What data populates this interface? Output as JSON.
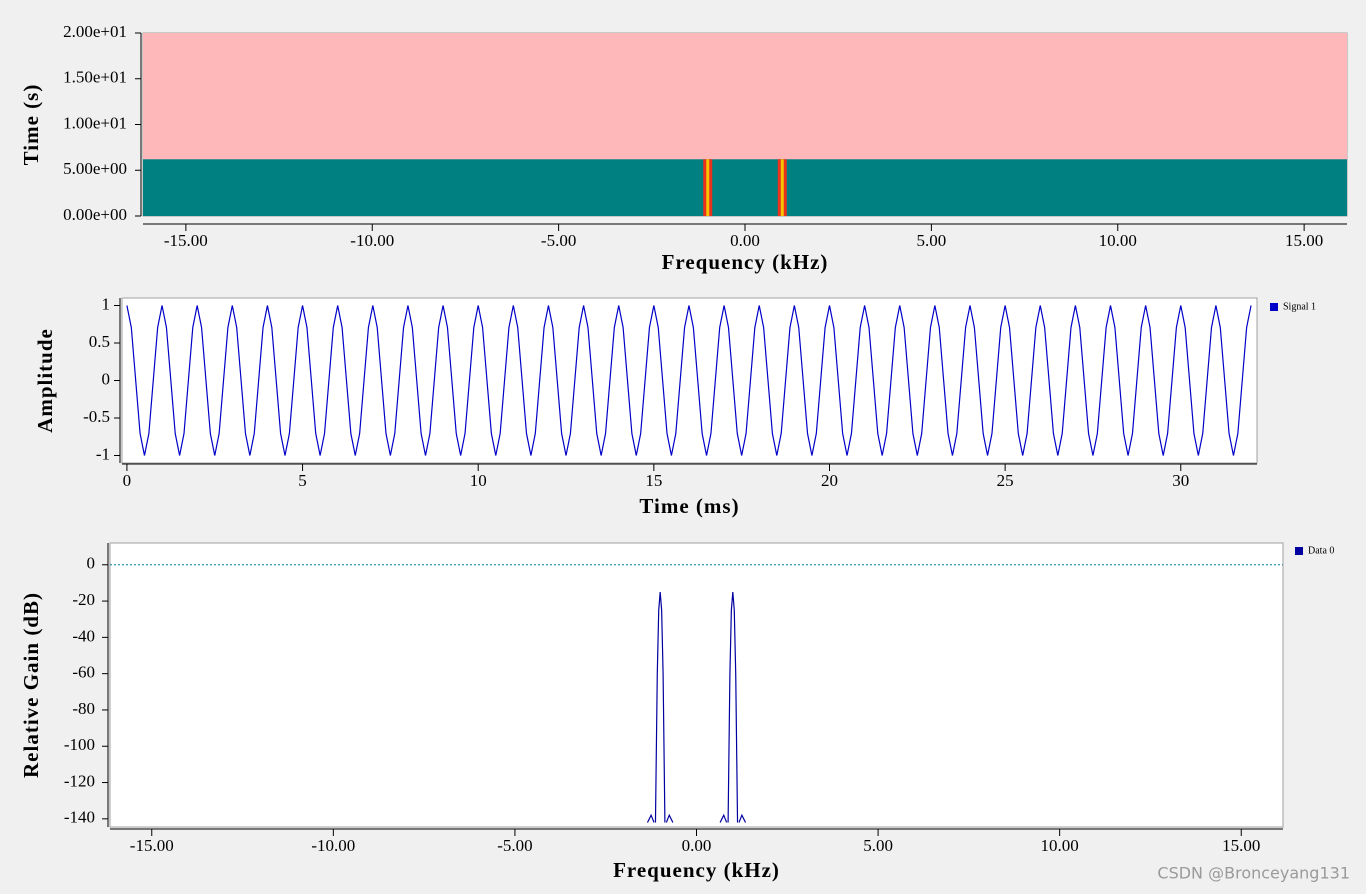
{
  "chart_data": [
    {
      "type": "waterfall",
      "xlabel": "Frequency (kHz)",
      "ylabel": "Time (s)",
      "xlim": [
        -16.15,
        16.15
      ],
      "ylim": [
        0,
        20
      ],
      "xticks": [
        {
          "value": -15,
          "label": "-15.00"
        },
        {
          "value": -10,
          "label": "-10.00"
        },
        {
          "value": -5,
          "label": "-5.00"
        },
        {
          "value": 0,
          "label": "0.00"
        },
        {
          "value": 5,
          "label": "5.00"
        },
        {
          "value": 10,
          "label": "10.00"
        },
        {
          "value": 15,
          "label": "15.00"
        }
      ],
      "yticks": [
        {
          "value": 0,
          "label": "0.00e+00"
        },
        {
          "value": 5,
          "label": "5.00e+00"
        },
        {
          "value": 10,
          "label": "1.00e+01"
        },
        {
          "value": 15,
          "label": "1.50e+01"
        },
        {
          "value": 20,
          "label": "2.00e+01"
        }
      ],
      "peaks": [
        -1,
        1
      ],
      "time_filled": 6.2,
      "colors": {
        "background": "#008080",
        "empty": "#ffb8ba",
        "peak": "#e8321e",
        "peak_center": "#f5c400"
      }
    },
    {
      "type": "line",
      "xlabel": "Time (ms)",
      "ylabel": "Amplitude",
      "xlim": [
        -0.14,
        32.17
      ],
      "ylim": [
        -1.1,
        1.1
      ],
      "xticks": [
        0,
        5,
        10,
        15,
        20,
        25,
        30
      ],
      "yticks": [
        1,
        0.5,
        0,
        -0.5,
        -1
      ],
      "x": [
        0,
        0.125,
        0.25,
        0.375,
        0.5,
        0.625,
        0.75,
        0.875,
        1,
        1.125,
        1.25,
        1.375,
        1.5,
        1.625,
        1.75,
        1.875,
        2,
        2.125,
        2.25,
        2.375,
        2.5,
        2.625,
        2.75,
        2.875,
        3,
        3.125,
        3.25,
        3.375,
        3.5,
        3.625,
        3.75,
        3.875,
        4,
        4.125,
        4.25,
        4.375,
        4.5,
        4.625,
        4.75,
        4.875,
        5,
        5.125,
        5.25,
        5.375,
        5.5,
        5.625,
        5.75,
        5.875,
        6,
        6.125,
        6.25,
        6.375,
        6.5,
        6.625,
        6.75,
        6.875,
        7,
        7.125,
        7.25,
        7.375,
        7.5,
        7.625,
        7.75,
        7.875,
        8,
        8.125,
        8.25,
        8.375,
        8.5,
        8.625,
        8.75,
        8.875,
        9,
        9.125,
        9.25,
        9.375,
        9.5,
        9.625,
        9.75,
        9.875,
        10,
        10.125,
        10.25,
        10.375,
        10.5,
        10.625,
        10.75,
        10.875,
        11,
        11.125,
        11.25,
        11.375,
        11.5,
        11.625,
        11.75,
        11.875,
        12,
        12.125,
        12.25,
        12.375,
        12.5,
        12.625,
        12.75,
        12.875,
        13,
        13.125,
        13.25,
        13.375,
        13.5,
        13.625,
        13.75,
        13.875,
        14,
        14.125,
        14.25,
        14.375,
        14.5,
        14.625,
        14.75,
        14.875,
        15,
        15.125,
        15.25,
        15.375,
        15.5,
        15.625,
        15.75,
        15.875,
        16,
        16.125,
        16.25,
        16.375,
        16.5,
        16.625,
        16.75,
        16.875,
        17,
        17.125,
        17.25,
        17.375,
        17.5,
        17.625,
        17.75,
        17.875,
        18,
        18.125,
        18.25,
        18.375,
        18.5,
        18.625,
        18.75,
        18.875,
        19,
        19.125,
        19.25,
        19.375,
        19.5,
        19.625,
        19.75,
        19.875,
        20,
        20.125,
        20.25,
        20.375,
        20.5,
        20.625,
        20.75,
        20.875,
        21,
        21.125,
        21.25,
        21.375,
        21.5,
        21.625,
        21.75,
        21.875,
        22,
        22.125,
        22.25,
        22.375,
        22.5,
        22.625,
        22.75,
        22.875,
        23,
        23.125,
        23.25,
        23.375,
        23.5,
        23.625,
        23.75,
        23.875,
        24,
        24.125,
        24.25,
        24.375,
        24.5,
        24.625,
        24.75,
        24.875,
        25,
        25.125,
        25.25,
        25.375,
        25.5,
        25.625,
        25.75,
        25.875,
        26,
        26.125,
        26.25,
        26.375,
        26.5,
        26.625,
        26.75,
        26.875,
        27,
        27.125,
        27.25,
        27.375,
        27.5,
        27.625,
        27.75,
        27.875,
        28,
        28.125,
        28.25,
        28.375,
        28.5,
        28.625,
        28.75,
        28.875,
        29,
        29.125,
        29.25,
        29.375,
        29.5,
        29.625,
        29.75,
        29.875,
        30,
        30.125,
        30.25,
        30.375,
        30.5,
        30.625,
        30.75,
        30.875,
        31,
        31.125,
        31.25,
        31.375,
        31.5,
        31.625,
        31.75,
        31.875,
        32
      ],
      "series": [
        {
          "name": "Signal 1",
          "color": "#0000c8",
          "values": [
            1,
            0.707,
            0,
            -0.707,
            -1,
            -0.707,
            0,
            0.707,
            1,
            0.707,
            0,
            -0.707,
            -1,
            -0.707,
            0,
            0.707,
            1,
            0.707,
            0,
            -0.707,
            -1,
            -0.707,
            0,
            0.707,
            1,
            0.707,
            0,
            -0.707,
            -1,
            -0.707,
            0,
            0.707,
            1,
            0.707,
            0,
            -0.707,
            -1,
            -0.707,
            0,
            0.707,
            1,
            0.707,
            0,
            -0.707,
            -1,
            -0.707,
            0,
            0.707,
            1,
            0.707,
            0,
            -0.707,
            -1,
            -0.707,
            0,
            0.707,
            1,
            0.707,
            0,
            -0.707,
            -1,
            -0.707,
            0,
            0.707,
            1,
            0.707,
            0,
            -0.707,
            -1,
            -0.707,
            0,
            0.707,
            1,
            0.707,
            0,
            -0.707,
            -1,
            -0.707,
            0,
            0.707,
            1,
            0.707,
            0,
            -0.707,
            -1,
            -0.707,
            0,
            0.707,
            1,
            0.707,
            0,
            -0.707,
            -1,
            -0.707,
            0,
            0.707,
            1,
            0.707,
            0,
            -0.707,
            -1,
            -0.707,
            0,
            0.707,
            1,
            0.707,
            0,
            -0.707,
            -1,
            -0.707,
            0,
            0.707,
            1,
            0.707,
            0,
            -0.707,
            -1,
            -0.707,
            0,
            0.707,
            1,
            0.707,
            0,
            -0.707,
            -1,
            -0.707,
            0,
            0.707,
            1,
            0.707,
            0,
            -0.707,
            -1,
            -0.707,
            0,
            0.707,
            1,
            0.707,
            0,
            -0.707,
            -1,
            -0.707,
            0,
            0.707,
            1,
            0.707,
            0,
            -0.707,
            -1,
            -0.707,
            0,
            0.707,
            1,
            0.707,
            0,
            -0.707,
            -1,
            -0.707,
            0,
            0.707,
            1,
            0.707,
            0,
            -0.707,
            -1,
            -0.707,
            0,
            0.707,
            1,
            0.707,
            0,
            -0.707,
            -1,
            -0.707,
            0,
            0.707,
            1,
            0.707,
            0,
            -0.707,
            -1,
            -0.707,
            0,
            0.707,
            1,
            0.707,
            0,
            -0.707,
            -1,
            -0.707,
            0,
            0.707,
            1,
            0.707,
            0,
            -0.707,
            -1,
            -0.707,
            0,
            0.707,
            1,
            0.707,
            0,
            -0.707,
            -1,
            -0.707,
            0,
            0.707,
            1,
            0.707,
            0,
            -0.707,
            -1,
            -0.707,
            0,
            0.707,
            1,
            0.707,
            0,
            -0.707,
            -1,
            -0.707,
            0,
            0.707,
            1,
            0.707,
            0,
            -0.707,
            -1,
            -0.707,
            0,
            0.707,
            1,
            0.707,
            0,
            -0.707,
            -1,
            -0.707,
            0,
            0.707,
            1,
            0.707,
            0,
            -0.707,
            -1,
            -0.707,
            0,
            0.707,
            1,
            0.707,
            0,
            -0.707,
            -1,
            -0.707,
            0,
            0.707,
            1
          ]
        }
      ]
    },
    {
      "type": "line",
      "xlabel": "Frequency (kHz)",
      "ylabel": "Relative Gain (dB)",
      "xlim": [
        -16.15,
        16.15
      ],
      "ylim": [
        -144.5,
        12
      ],
      "xticks": [
        {
          "value": -15,
          "label": "-15.00"
        },
        {
          "value": -10,
          "label": "-10.00"
        },
        {
          "value": -5,
          "label": "-5.00"
        },
        {
          "value": 0,
          "label": "0.00"
        },
        {
          "value": 5,
          "label": "5.00"
        },
        {
          "value": 10,
          "label": "10.00"
        },
        {
          "value": 15,
          "label": "15.00"
        }
      ],
      "yticks": [
        0,
        -20,
        -40,
        -60,
        -80,
        -100,
        -120,
        -140
      ],
      "reference_line": 0,
      "reference_color": "#0080a0",
      "x": [
        -1.35,
        -1.25,
        -1.17,
        -1.15,
        -1.13,
        -1.08,
        -1.04,
        -1.0,
        -0.96,
        -0.92,
        -0.87,
        -0.85,
        -0.83,
        -0.75,
        -0.65,
        0,
        0.65,
        0.75,
        0.83,
        0.85,
        0.87,
        0.92,
        0.96,
        1.0,
        1.04,
        1.08,
        1.13,
        1.15,
        1.17,
        1.25,
        1.35
      ],
      "series": [
        {
          "name": "Data 0",
          "color": "#0000a0",
          "values": [
            -142,
            -138,
            -142,
            null,
            -142,
            -60,
            -25,
            -15,
            -25,
            -60,
            -142,
            null,
            -142,
            -138,
            -142,
            null,
            -142,
            -138,
            -142,
            null,
            -142,
            -60,
            -25,
            -15,
            -25,
            -60,
            -142,
            null,
            -142,
            -138,
            -142
          ]
        }
      ]
    }
  ],
  "watermark": "CSDN @Bronceyang131"
}
